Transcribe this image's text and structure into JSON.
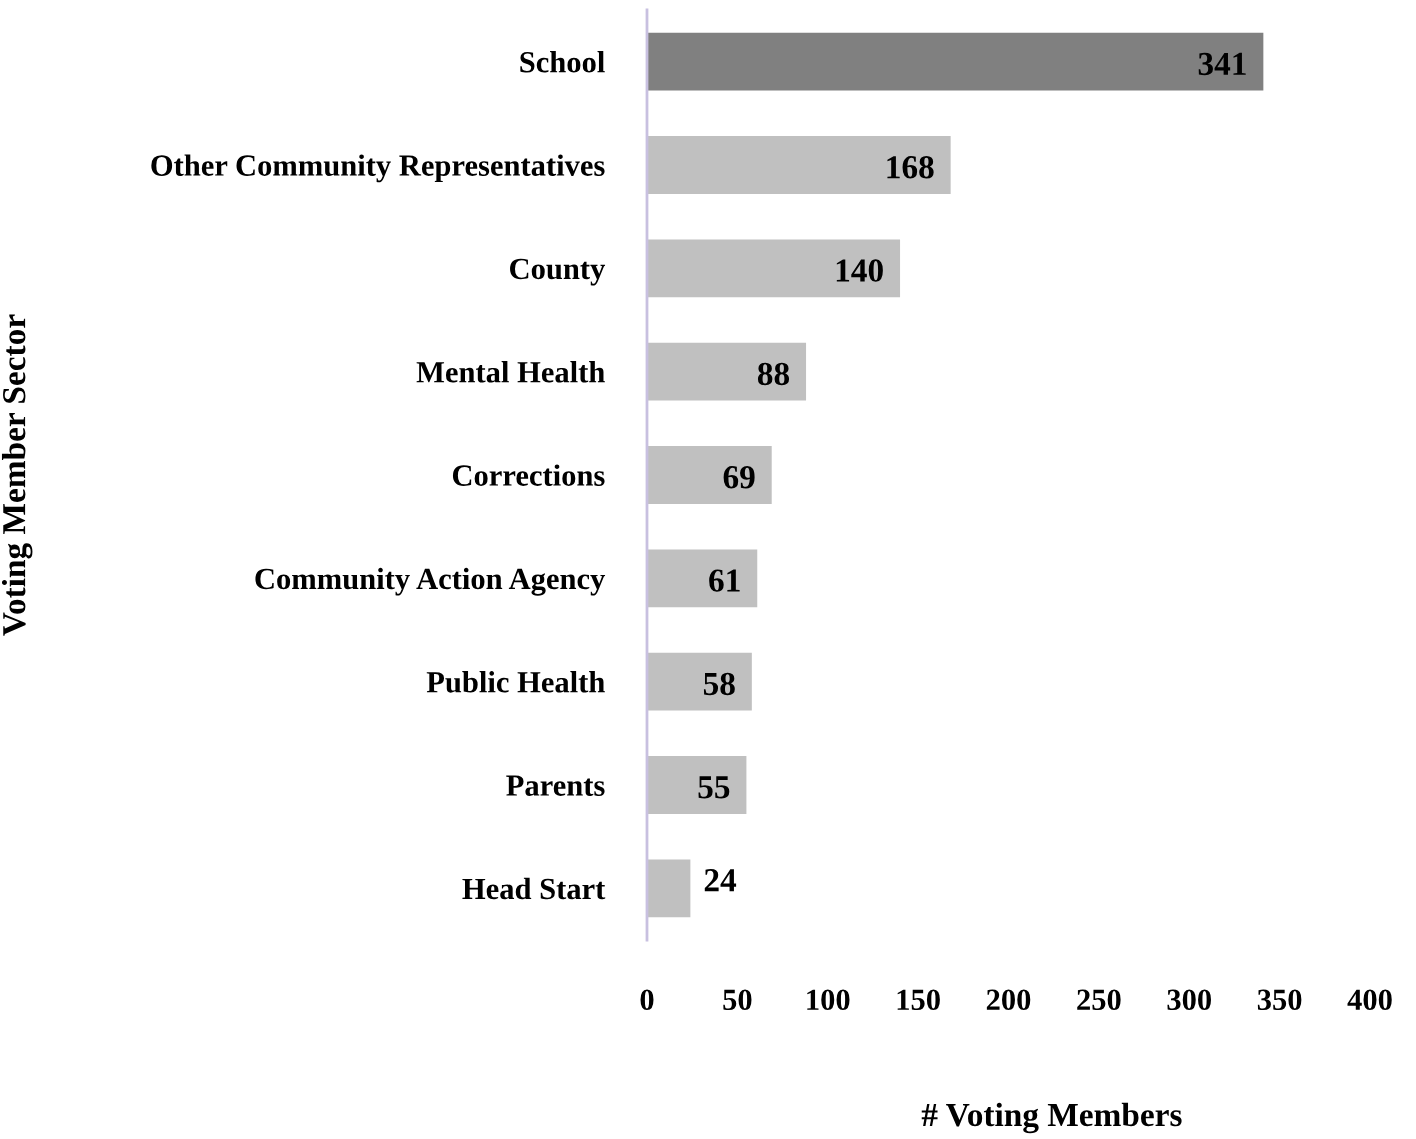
{
  "chart_data": {
    "type": "bar",
    "orientation": "horizontal",
    "ylabel": "Voting Member Sector",
    "xlabel": "# Voting Members",
    "categories": [
      "School",
      "Other Community Representatives",
      "County",
      "Mental Health",
      "Corrections",
      "Community Action Agency",
      "Public Health",
      "Parents",
      "Head Start"
    ],
    "values": [
      341,
      168,
      140,
      88,
      69,
      61,
      58,
      55,
      24
    ],
    "colors": [
      "#808080",
      "#c0c0c0",
      "#c0c0c0",
      "#c0c0c0",
      "#c0c0c0",
      "#c0c0c0",
      "#c0c0c0",
      "#c0c0c0",
      "#c0c0c0"
    ],
    "xlim": [
      0,
      400
    ],
    "xticks": [
      0,
      50,
      100,
      150,
      200,
      250,
      300,
      350,
      400
    ],
    "data_labels": true,
    "grid": false,
    "legend": false
  }
}
